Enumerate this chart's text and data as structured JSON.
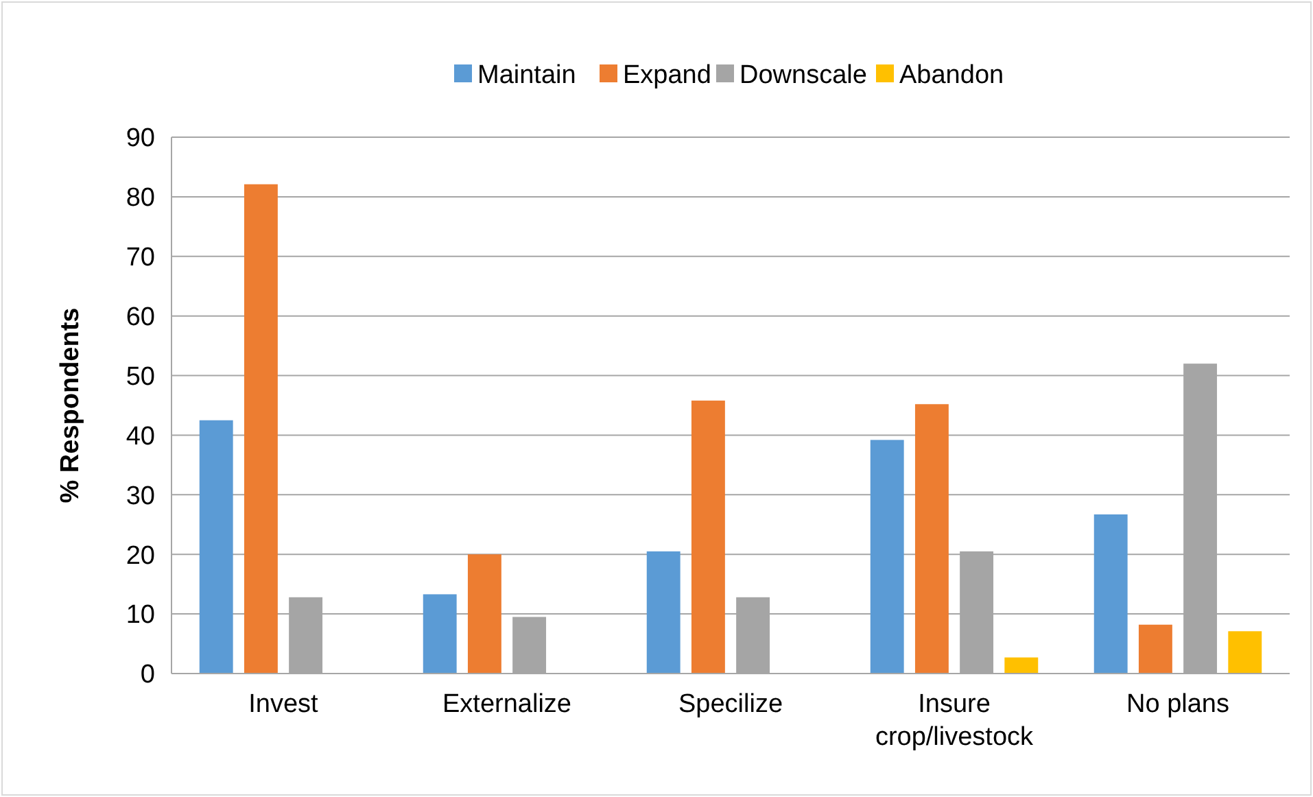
{
  "chart_data": {
    "type": "bar",
    "ylabel": "% Respondents",
    "categories": [
      "Invest",
      "Externalize",
      "Specilize",
      "Insure crop/livestock",
      "No plans"
    ],
    "series": [
      {
        "name": "Maintain",
        "color": "#5b9bd5",
        "values": [
          42.5,
          13.3,
          20.5,
          39.2,
          26.7
        ]
      },
      {
        "name": "Expand",
        "color": "#ed7d31",
        "values": [
          82.1,
          20,
          45.8,
          45.2,
          8.2
        ]
      },
      {
        "name": "Downscale",
        "color": "#a5a5a5",
        "values": [
          12.8,
          9.5,
          12.8,
          20.5,
          52
        ]
      },
      {
        "name": "Abandon",
        "color": "#ffc000",
        "values": [
          0,
          0,
          0,
          2.7,
          7.1
        ]
      }
    ],
    "ylim": [
      0,
      90
    ],
    "yticks": [
      0,
      10,
      20,
      30,
      40,
      50,
      60,
      70,
      80,
      90
    ],
    "grid": "y",
    "legend": "top"
  }
}
